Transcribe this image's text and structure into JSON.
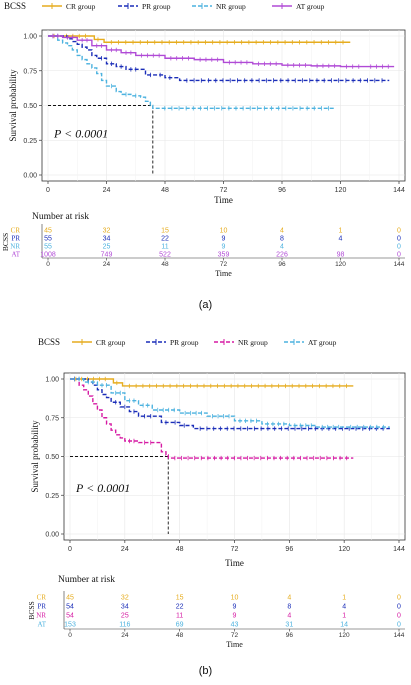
{
  "panels": [
    {
      "id": "a",
      "caption": "(a)",
      "legend_title": "BCSS",
      "ylabel": "Survival probability",
      "xlabel": "Time",
      "pvalue": "P < 0.0001",
      "risk_title": "Number at risk",
      "risk_ylabel": "BCSS"
    },
    {
      "id": "b",
      "caption": "(b)",
      "legend_title": "BCSS",
      "ylabel": "Survival probability",
      "xlabel": "Time",
      "pvalue": "P < 0.0001",
      "risk_title": "Number at risk",
      "risk_ylabel": "BCSS"
    }
  ],
  "chart_data": [
    {
      "type": "line",
      "chart": "kaplan-meier",
      "xlim": [
        0,
        144
      ],
      "ylim": [
        0,
        1
      ],
      "x_ticks": [
        0,
        24,
        48,
        72,
        96,
        120,
        144
      ],
      "y_ticks": [
        "0.00",
        "0.25",
        "0.50",
        "0.75",
        "1.00"
      ],
      "median_reference": {
        "y": 0.5,
        "x": 43
      },
      "series": [
        {
          "name": "CR group",
          "color": "#e6ac1e",
          "dash": "solid",
          "points": [
            [
              0,
              1.0
            ],
            [
              5,
              1.0
            ],
            [
              18,
              1.0
            ],
            [
              19,
              0.975
            ],
            [
              22,
              0.975
            ],
            [
              23,
              0.955
            ],
            [
              124,
              0.955
            ]
          ]
        },
        {
          "name": "PR group",
          "color": "#1a2db8",
          "dash": "dashed",
          "points": [
            [
              0,
              1.0
            ],
            [
              6,
              1.0
            ],
            [
              8,
              0.98
            ],
            [
              10,
              0.96
            ],
            [
              12,
              0.94
            ],
            [
              14,
              0.92
            ],
            [
              16,
              0.9
            ],
            [
              18,
              0.86
            ],
            [
              20,
              0.84
            ],
            [
              24,
              0.8
            ],
            [
              28,
              0.78
            ],
            [
              32,
              0.76
            ],
            [
              38,
              0.76
            ],
            [
              40,
              0.72
            ],
            [
              44,
              0.72
            ],
            [
              48,
              0.7
            ],
            [
              52,
              0.7
            ],
            [
              54,
              0.68
            ],
            [
              140,
              0.68
            ]
          ]
        },
        {
          "name": "NR group",
          "color": "#4cb2df",
          "dash": "dashed",
          "points": [
            [
              0,
              1.0
            ],
            [
              2,
              1.0
            ],
            [
              4,
              0.97
            ],
            [
              6,
              0.95
            ],
            [
              8,
              0.93
            ],
            [
              10,
              0.9
            ],
            [
              12,
              0.86
            ],
            [
              14,
              0.83
            ],
            [
              16,
              0.8
            ],
            [
              18,
              0.77
            ],
            [
              20,
              0.73
            ],
            [
              22,
              0.68
            ],
            [
              24,
              0.64
            ],
            [
              28,
              0.6
            ],
            [
              30,
              0.58
            ],
            [
              34,
              0.57
            ],
            [
              38,
              0.56
            ],
            [
              40,
              0.53
            ],
            [
              42,
              0.5
            ],
            [
              43,
              0.48
            ],
            [
              45,
              0.48
            ],
            [
              118,
              0.48
            ]
          ]
        },
        {
          "name": "AT group",
          "color": "#b04ad6",
          "dash": "solid",
          "points": [
            [
              0,
              1.0
            ],
            [
              6,
              0.99
            ],
            [
              12,
              0.97
            ],
            [
              18,
              0.93
            ],
            [
              24,
              0.9
            ],
            [
              30,
              0.88
            ],
            [
              36,
              0.86
            ],
            [
              48,
              0.84
            ],
            [
              60,
              0.83
            ],
            [
              72,
              0.81
            ],
            [
              84,
              0.8
            ],
            [
              96,
              0.79
            ],
            [
              108,
              0.785
            ],
            [
              120,
              0.78
            ],
            [
              130,
              0.78
            ],
            [
              142,
              0.78
            ]
          ]
        }
      ],
      "risk_table": {
        "x": [
          0,
          24,
          48,
          72,
          96,
          120,
          144
        ],
        "rows": [
          {
            "label": "CR",
            "color": "#e6ac1e",
            "values": [
              "45",
              "32",
              "15",
              "10",
              "4",
              "1",
              "0"
            ]
          },
          {
            "label": "PR",
            "color": "#1a2db8",
            "values": [
              "55",
              "34",
              "22",
              "9",
              "8",
              "4",
              "0"
            ]
          },
          {
            "label": "NR",
            "color": "#4cb2df",
            "values": [
              "55",
              "25",
              "11",
              "9",
              "4",
              "",
              "0"
            ]
          },
          {
            "label": "AT",
            "color": "#b04ad6",
            "values": [
              "1008",
              "749",
              "522",
              "359",
              "226",
              "98",
              "0"
            ]
          }
        ]
      }
    },
    {
      "type": "line",
      "chart": "kaplan-meier",
      "xlim": [
        0,
        144
      ],
      "ylim": [
        0,
        1
      ],
      "x_ticks": [
        0,
        24,
        48,
        72,
        96,
        120,
        144
      ],
      "y_ticks": [
        "0.00",
        "0.25",
        "0.50",
        "0.75",
        "1.00"
      ],
      "median_reference": {
        "y": 0.5,
        "x": 43
      },
      "series": [
        {
          "name": "CR group",
          "color": "#e6ac1e",
          "dash": "solid",
          "points": [
            [
              0,
              1.0
            ],
            [
              18,
              1.0
            ],
            [
              19,
              0.975
            ],
            [
              22,
              0.975
            ],
            [
              23,
              0.955
            ],
            [
              124,
              0.955
            ]
          ]
        },
        {
          "name": "PR group",
          "color": "#1a2db8",
          "dash": "dashed",
          "points": [
            [
              0,
              1.0
            ],
            [
              6,
              1.0
            ],
            [
              8,
              0.98
            ],
            [
              10,
              0.96
            ],
            [
              12,
              0.93
            ],
            [
              14,
              0.9
            ],
            [
              16,
              0.88
            ],
            [
              18,
              0.85
            ],
            [
              22,
              0.82
            ],
            [
              26,
              0.79
            ],
            [
              30,
              0.76
            ],
            [
              38,
              0.76
            ],
            [
              40,
              0.72
            ],
            [
              44,
              0.72
            ],
            [
              48,
              0.7
            ],
            [
              52,
              0.7
            ],
            [
              54,
              0.68
            ],
            [
              140,
              0.68
            ]
          ]
        },
        {
          "name": "NR group",
          "color": "#d61aa3",
          "dash": "dashed",
          "points": [
            [
              0,
              1.0
            ],
            [
              4,
              0.96
            ],
            [
              6,
              0.93
            ],
            [
              8,
              0.89
            ],
            [
              10,
              0.84
            ],
            [
              12,
              0.8
            ],
            [
              14,
              0.75
            ],
            [
              16,
              0.71
            ],
            [
              18,
              0.67
            ],
            [
              20,
              0.64
            ],
            [
              22,
              0.62
            ],
            [
              24,
              0.6
            ],
            [
              30,
              0.59
            ],
            [
              38,
              0.59
            ],
            [
              40,
              0.53
            ],
            [
              42,
              0.51
            ],
            [
              43,
              0.49
            ],
            [
              124,
              0.49
            ]
          ]
        },
        {
          "name": "AT group",
          "color": "#4cb2df",
          "dash": "dashed",
          "points": [
            [
              0,
              1.0
            ],
            [
              6,
              0.98
            ],
            [
              12,
              0.96
            ],
            [
              18,
              0.91
            ],
            [
              24,
              0.86
            ],
            [
              30,
              0.83
            ],
            [
              36,
              0.8
            ],
            [
              48,
              0.78
            ],
            [
              60,
              0.76
            ],
            [
              72,
              0.73
            ],
            [
              84,
              0.71
            ],
            [
              96,
              0.7
            ],
            [
              108,
              0.69
            ],
            [
              120,
              0.69
            ],
            [
              140,
              0.69
            ]
          ]
        }
      ],
      "risk_table": {
        "x": [
          0,
          24,
          48,
          72,
          96,
          120,
          144
        ],
        "rows": [
          {
            "label": "CR",
            "color": "#e6ac1e",
            "values": [
              "45",
              "32",
              "15",
              "10",
              "4",
              "1",
              "0"
            ]
          },
          {
            "label": "PR",
            "color": "#1a2db8",
            "values": [
              "54",
              "34",
              "22",
              "9",
              "8",
              "4",
              "0"
            ]
          },
          {
            "label": "NR",
            "color": "#d61aa3",
            "values": [
              "54",
              "25",
              "11",
              "9",
              "4",
              "1",
              "0"
            ]
          },
          {
            "label": "AT",
            "color": "#4cb2df",
            "values": [
              "153",
              "116",
              "69",
              "43",
              "31",
              "14",
              "0"
            ]
          }
        ]
      }
    }
  ]
}
